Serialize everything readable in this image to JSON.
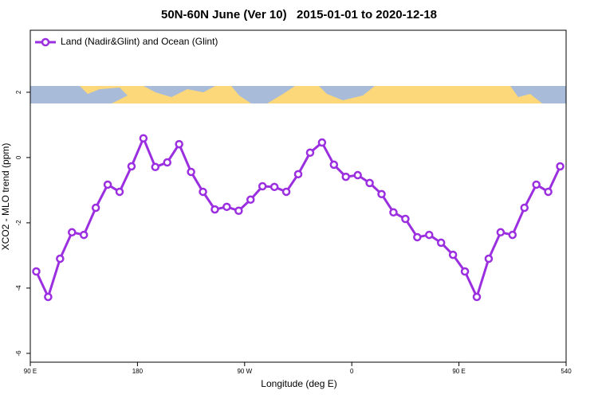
{
  "chart_data": {
    "type": "line",
    "title": "50N-60N June (Ver 10)   2015-01-01 to 2020-12-18",
    "xlabel": "Longitude (deg E)",
    "ylabel": "XCO2 - MLO trend (ppm)",
    "legend_position": "upper left",
    "x": [
      95,
      105,
      115,
      125,
      135,
      145,
      155,
      165,
      175,
      185,
      195,
      205,
      215,
      225,
      235,
      245,
      255,
      265,
      275,
      285,
      295,
      305,
      315,
      325,
      335,
      345,
      355,
      365,
      375,
      385,
      395,
      405,
      415,
      425,
      435,
      445,
      455,
      465,
      475,
      485,
      495,
      505,
      515,
      525,
      535
    ],
    "series": [
      {
        "name": "Land (Nadir&Glint) and Ocean (Glint)",
        "color": "#9b2fe0",
        "values": [
          -3.49,
          -4.27,
          -3.1,
          -2.29,
          -2.37,
          -1.54,
          -0.83,
          -1.05,
          -0.27,
          0.59,
          -0.29,
          -0.15,
          0.41,
          -0.44,
          -1.05,
          -1.59,
          -1.51,
          -1.63,
          -1.29,
          -0.88,
          -0.9,
          -1.05,
          -0.51,
          0.15,
          0.46,
          -0.22,
          -0.59,
          -0.54,
          -0.78,
          -1.12,
          -1.68,
          -1.88,
          -2.44,
          -2.37,
          -2.61,
          -2.98,
          -3.49,
          -4.27,
          -3.1,
          -2.29,
          -2.37,
          -1.54,
          -0.83,
          -1.05,
          -0.27
        ]
      }
    ],
    "xlim": [
      90,
      540
    ],
    "xticks": [
      {
        "value": 90,
        "label": "90 E"
      },
      180,
      {
        "value": 270,
        "label": "90 W"
      },
      {
        "value": 360,
        "label": "0"
      },
      {
        "value": 450,
        "label": "90 E"
      },
      540
    ],
    "ylim": [
      -6.27,
      3.9
    ],
    "yticks": [
      -6,
      -4,
      -2,
      0,
      2
    ]
  }
}
